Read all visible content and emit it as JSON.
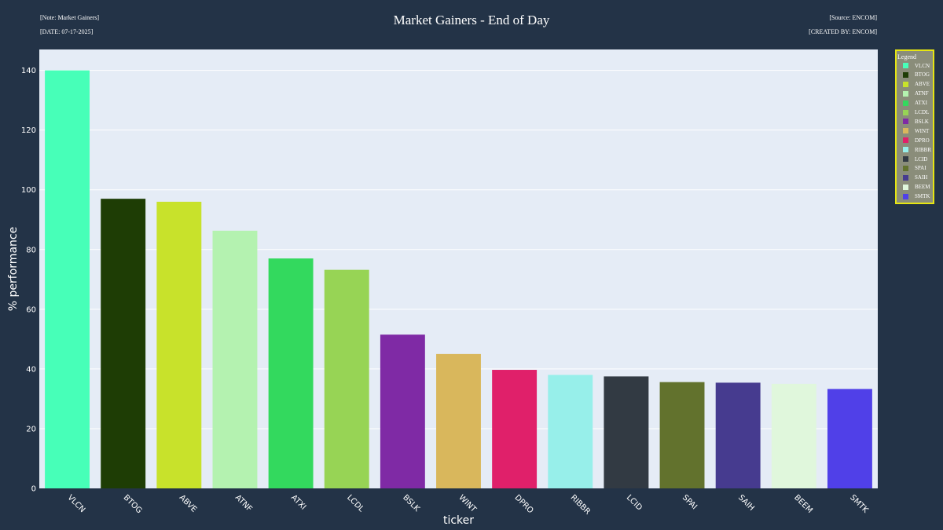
{
  "header": {
    "note": "[Note: Market Gainers]",
    "date": "[DATE: 07-17-2025]",
    "source": "[Source: ENCOM]",
    "created_by": "[CREATED BY: ENCOM]"
  },
  "colors": {
    "background": "#233347",
    "plot_background": "#e5ecf6",
    "legend_border": "#e6e612",
    "legend_background": "#8a8d7a"
  },
  "legend": {
    "title": "Legend"
  },
  "chart_data": {
    "type": "bar",
    "title": "Market Gainers - End of Day",
    "xlabel": "ticker",
    "ylabel": "% performance",
    "ylim": [
      0,
      147
    ],
    "yticks": [
      0,
      20,
      40,
      60,
      80,
      100,
      120,
      140
    ],
    "grid": true,
    "legend_position": "right",
    "categories": [
      "VLCN",
      "BTOG",
      "ABVE",
      "ATNF",
      "ATXI",
      "LCDL",
      "BSLK",
      "WINT",
      "DPRO",
      "RIBBR",
      "LCID",
      "SPAI",
      "SAIH",
      "BEEM",
      "SMTK"
    ],
    "values": [
      140,
      97,
      96,
      86.3,
      77,
      73.2,
      51.5,
      45,
      39.7,
      38,
      37.5,
      35.6,
      35.4,
      35,
      33.3
    ],
    "colors": [
      "#47ffb8",
      "#1e3d05",
      "#c8e22b",
      "#b4f2b0",
      "#33d95e",
      "#97d455",
      "#7f2aa5",
      "#d9b75c",
      "#e0206a",
      "#97efea",
      "#323a43",
      "#62722d",
      "#463b8f",
      "#e0f7dc",
      "#5040e8"
    ]
  }
}
